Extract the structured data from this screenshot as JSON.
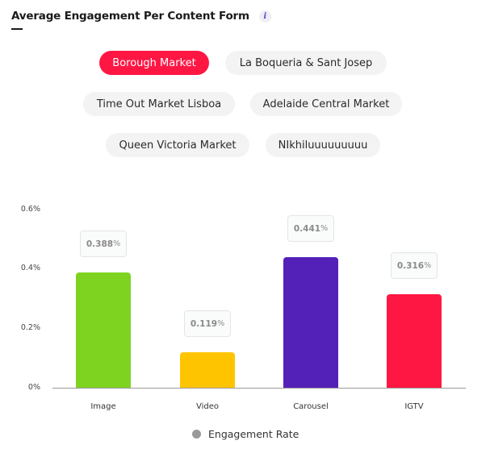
{
  "header": {
    "title": "Average Engagement Per Content Form",
    "info_icon": "info-icon",
    "info_glyph": "i"
  },
  "filters": {
    "items": [
      {
        "label": "Borough Market",
        "active": true
      },
      {
        "label": "La Boqueria & Sant Josep",
        "active": false
      },
      {
        "label": "Time Out Market Lisboa",
        "active": false
      },
      {
        "label": "Adelaide Central Market",
        "active": false
      },
      {
        "label": "Queen Victoria Market",
        "active": false
      },
      {
        "label": "NIkhiluuuuuuuuu",
        "active": false
      }
    ],
    "active_color": "#ff1744",
    "inactive_color": "#f3f3f4"
  },
  "chart_data": {
    "type": "bar",
    "title": "Average Engagement Per Content Form",
    "categories": [
      "Image",
      "Video",
      "Carousel",
      "IGTV"
    ],
    "series": [
      {
        "name": "Engagement Rate",
        "values": [
          0.388,
          0.119,
          0.441,
          0.316
        ],
        "unit": "%"
      }
    ],
    "value_labels": [
      "0.388",
      "0.119",
      "0.441",
      "0.316"
    ],
    "value_suffix": "%",
    "bar_colors": [
      "#7ed321",
      "#ffc400",
      "#5321b8",
      "#ff1744"
    ],
    "yticks": [
      "0%",
      "0.2%",
      "0.4%",
      "0.6%"
    ],
    "ylim": [
      0,
      0.6
    ],
    "xlabel": "",
    "ylabel": "",
    "grid": false,
    "legend": {
      "position": "bottom",
      "entries": [
        "Engagement Rate"
      ],
      "marker_color": "#999999"
    }
  }
}
